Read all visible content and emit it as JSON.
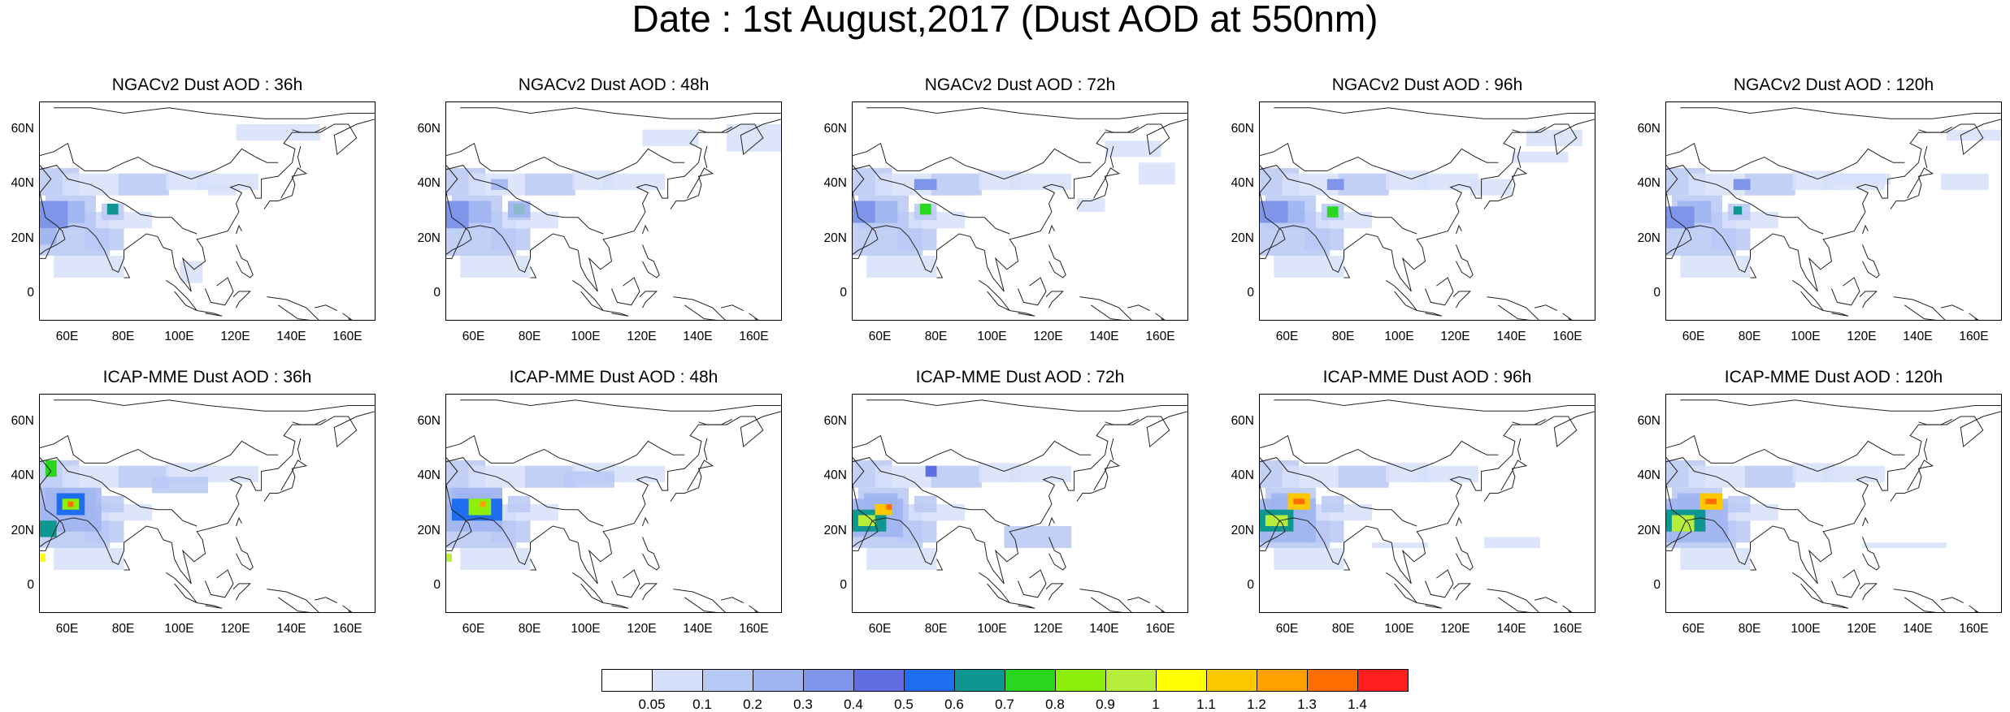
{
  "title": "Date : 1st August,2017 (Dust AOD at 550nm)",
  "lat_ticks": [
    "60N",
    "40N",
    "20N",
    "0"
  ],
  "lon_ticks": [
    "60E",
    "80E",
    "100E",
    "120E",
    "140E",
    "160E"
  ],
  "panels": [
    {
      "title": "NGACv2 Dust AOD : 36h"
    },
    {
      "title": "NGACv2 Dust AOD : 48h"
    },
    {
      "title": "NGACv2 Dust AOD : 72h"
    },
    {
      "title": "NGACv2 Dust AOD : 96h"
    },
    {
      "title": "NGACv2 Dust AOD : 120h"
    },
    {
      "title": "ICAP-MME Dust AOD : 36h"
    },
    {
      "title": "ICAP-MME Dust AOD : 48h"
    },
    {
      "title": "ICAP-MME Dust AOD : 72h"
    },
    {
      "title": "ICAP-MME Dust AOD : 96h"
    },
    {
      "title": "ICAP-MME Dust AOD : 120h"
    }
  ],
  "colorbar": {
    "labels": [
      "0.05",
      "0.1",
      "0.2",
      "0.3",
      "0.4",
      "0.5",
      "0.6",
      "0.7",
      "0.8",
      "0.9",
      "1",
      "1.1",
      "1.2",
      "1.3",
      "1.4"
    ],
    "colors": [
      "#ffffff",
      "#d7e0fa",
      "#b8c8f5",
      "#9eb3f0",
      "#7f95ea",
      "#5f6ee3",
      "#1f6ef0",
      "#0e9690",
      "#29d81e",
      "#8cf00a",
      "#b7ee3c",
      "#fefe00",
      "#fec800",
      "#fea000",
      "#fe6e00",
      "#fe1e1e"
    ]
  }
}
